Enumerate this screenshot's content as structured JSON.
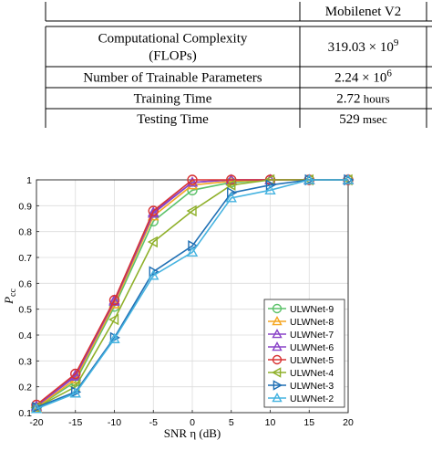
{
  "table": {
    "header": "Mobilenet V2",
    "rows": [
      {
        "label_lines": [
          "Computational Complexity",
          "(FLOPs)"
        ],
        "value": "319.03 × 10",
        "sup": "9",
        "unit": ""
      },
      {
        "label_lines": [
          "Number of Trainable Parameters"
        ],
        "value": "2.24 × 10",
        "sup": "6",
        "unit": ""
      },
      {
        "label_lines": [
          "Training Time"
        ],
        "value": "2.72",
        "sup": "",
        "unit": "hours"
      },
      {
        "label_lines": [
          "Testing Time"
        ],
        "value": "529",
        "sup": "",
        "unit": "msec"
      }
    ]
  },
  "chart_data": {
    "type": "line",
    "xlabel": "SNR η (dB)",
    "ylabel": "P_cc",
    "xlim": [
      -20,
      20
    ],
    "ylim": [
      0.1,
      1
    ],
    "xticks": [
      -20,
      -15,
      -10,
      -5,
      0,
      5,
      10,
      15,
      20
    ],
    "yticks": [
      0.1,
      0.2,
      0.3,
      0.4,
      0.5,
      0.6,
      0.7,
      0.8,
      0.9,
      1
    ],
    "grid": true,
    "legend_position": "lower-right",
    "x": [
      -20,
      -15,
      -10,
      -5,
      0,
      5,
      10,
      15,
      20
    ],
    "series": [
      {
        "name": "ULWNet-9",
        "color": "#5cc26a",
        "marker": "circle",
        "values": [
          0.12,
          0.22,
          0.51,
          0.84,
          0.96,
          0.99,
          1,
          1,
          1
        ]
      },
      {
        "name": "ULWNet-8",
        "color": "#f5a623",
        "marker": "triangle-up",
        "values": [
          0.12,
          0.23,
          0.52,
          0.86,
          0.98,
          0.995,
          1,
          1,
          1
        ]
      },
      {
        "name": "ULWNet-7",
        "color": "#8a44c8",
        "marker": "triangle-up",
        "values": [
          0.125,
          0.24,
          0.53,
          0.87,
          0.99,
          1,
          1,
          1,
          1
        ]
      },
      {
        "name": "ULWNet-6",
        "color": "#8a44c8",
        "marker": "triangle-up",
        "values": [
          0.125,
          0.245,
          0.535,
          0.875,
          0.99,
          1,
          1,
          1,
          1
        ]
      },
      {
        "name": "ULWNet-5",
        "color": "#d83333",
        "marker": "circle",
        "values": [
          0.13,
          0.25,
          0.535,
          0.88,
          1,
          1,
          1,
          1,
          1
        ]
      },
      {
        "name": "ULWNet-4",
        "color": "#8fb02a",
        "marker": "triangle-left",
        "values": [
          0.12,
          0.2,
          0.46,
          0.76,
          0.88,
          0.98,
          1,
          1,
          1
        ]
      },
      {
        "name": "ULWNet-3",
        "color": "#1f6fb4",
        "marker": "triangle-right",
        "values": [
          0.12,
          0.18,
          0.39,
          0.645,
          0.745,
          0.95,
          0.98,
          1,
          1
        ]
      },
      {
        "name": "ULWNet-2",
        "color": "#45b3e0",
        "marker": "triangle-up",
        "values": [
          0.115,
          0.175,
          0.385,
          0.63,
          0.72,
          0.93,
          0.96,
          1,
          1
        ]
      }
    ]
  }
}
